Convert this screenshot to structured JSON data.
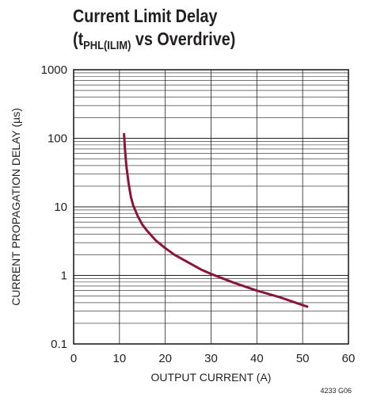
{
  "chart_data": {
    "type": "line",
    "title_line1": "Current Limit Delay",
    "title_line2_open": "(t",
    "title_line2_sub": "PHL(ILIM)",
    "title_line2_rest": " vs Overdrive)",
    "xlabel": "OUTPUT CURRENT (A)",
    "ylabel": "CURRENT PROPAGATION DELAY (µs)",
    "xlim": [
      0,
      60
    ],
    "ylim": [
      0.1,
      1000
    ],
    "yscale": "log",
    "grid": true,
    "x_ticks": [
      0,
      10,
      20,
      30,
      40,
      50,
      60
    ],
    "x_tick_labels": [
      "0",
      "10",
      "20",
      "30",
      "40",
      "50",
      "60"
    ],
    "y_ticks": [
      0.1,
      1,
      10,
      100,
      1000
    ],
    "y_tick_labels": [
      "0.1",
      "1",
      "10",
      "100",
      "1000"
    ],
    "line_color": "#8b1538",
    "series": [
      {
        "x": [
          11.0,
          11.2,
          11.5,
          12.0,
          12.5,
          13.0,
          14.0,
          15.0,
          16.0,
          17.0,
          18.0,
          20.0,
          22.0,
          25.0,
          28.0,
          30.0,
          35.0,
          40.0,
          45.0,
          51.0
        ],
        "y": [
          115,
          70,
          40,
          22,
          14,
          10.5,
          7.3,
          5.5,
          4.5,
          3.8,
          3.2,
          2.5,
          2.0,
          1.55,
          1.2,
          1.05,
          0.78,
          0.6,
          0.48,
          0.35
        ]
      }
    ]
  },
  "figure_id": "4233 G06"
}
